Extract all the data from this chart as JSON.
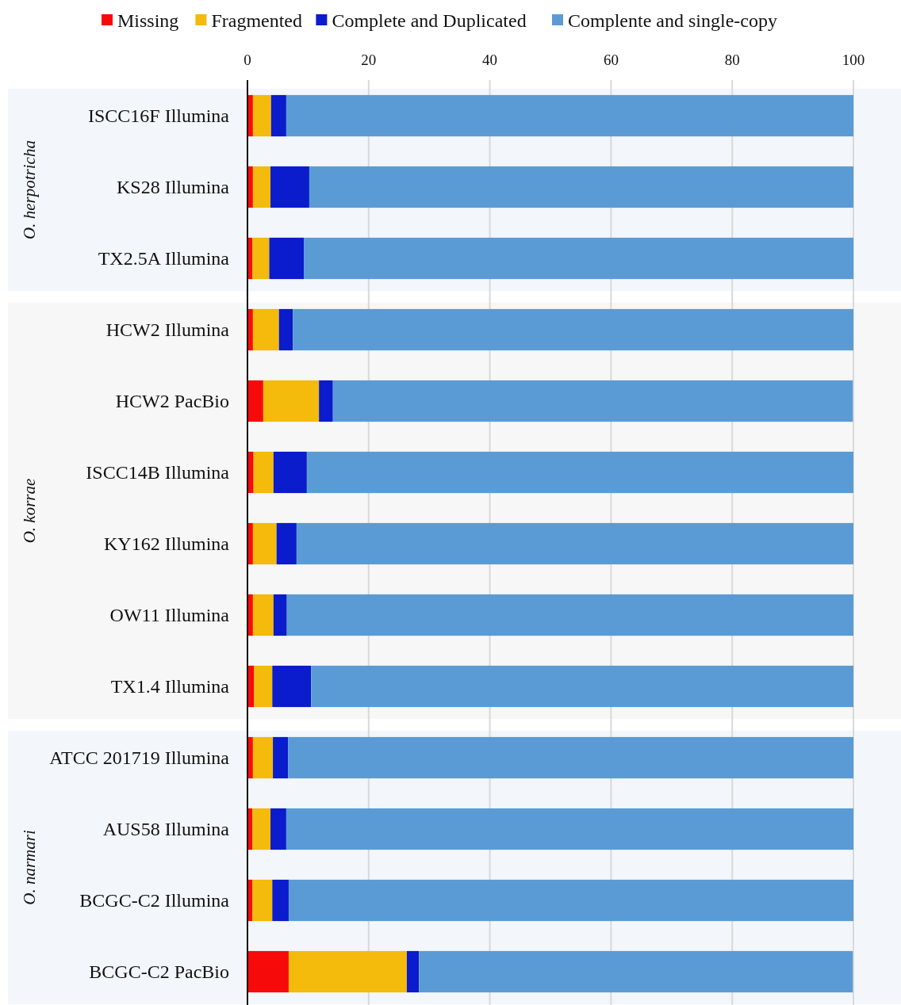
{
  "chart_data": {
    "type": "bar",
    "orientation": "horizontal",
    "stacked": true,
    "categories": [
      "ISCC16F Illumina",
      "KS28 Illumina",
      "TX2.5A Illumina",
      "HCW2 Illumina",
      "HCW2 PacBio",
      "ISCC14B Illumina",
      "KY162 Illumina",
      "OW11 Illumina",
      "TX1.4 Illumina",
      "ATCC 201719 Illumina",
      "AUS58 Illumina",
      "BCGC-C2 Illumina",
      "BCGC-C2 PacBio"
    ],
    "series": [
      {
        "name": "Missing",
        "color": "#f70a0a",
        "values": [
          0.9,
          0.9,
          0.8,
          0.9,
          2.6,
          1.0,
          0.9,
          0.9,
          1.1,
          0.9,
          0.8,
          0.8,
          6.8
        ]
      },
      {
        "name": "Fragmented",
        "color": "#f4ba0c",
        "values": [
          3.0,
          2.9,
          2.8,
          4.3,
          9.2,
          3.3,
          3.9,
          3.4,
          3.0,
          3.3,
          3.0,
          3.3,
          19.5
        ]
      },
      {
        "name": "Complete and Duplicated",
        "color": "#0a1ccb",
        "values": [
          2.5,
          6.4,
          5.7,
          2.3,
          2.3,
          5.5,
          3.3,
          2.2,
          6.4,
          2.5,
          2.6,
          2.7,
          2.0
        ]
      },
      {
        "name": "Complente and single-copy",
        "color": "#5b9bd5",
        "values": [
          93.6,
          89.8,
          90.7,
          92.5,
          85.8,
          90.2,
          91.9,
          93.5,
          89.5,
          93.3,
          93.6,
          93.2,
          71.6
        ]
      }
    ],
    "xlim": [
      0,
      100
    ],
    "xticks": [
      0,
      20,
      40,
      60,
      80,
      100
    ],
    "grid": "x",
    "legend": "top",
    "bands": [
      {
        "axis": "y",
        "from": "ISCC16F Illumina",
        "to": "TX2.5A Illumina",
        "label": "O. herpotricha",
        "color": "#f3f6fb"
      },
      {
        "axis": "y",
        "from": "HCW2 Illumina",
        "to": "TX1.4 Illumina",
        "label": "O. korrae",
        "color": "#f7f7f7"
      },
      {
        "axis": "y",
        "from": "ATCC 201719 Illumina",
        "to": "BCGC-C2 PacBio",
        "label": "O. narmari",
        "color": "#f3f6fb"
      }
    ]
  }
}
